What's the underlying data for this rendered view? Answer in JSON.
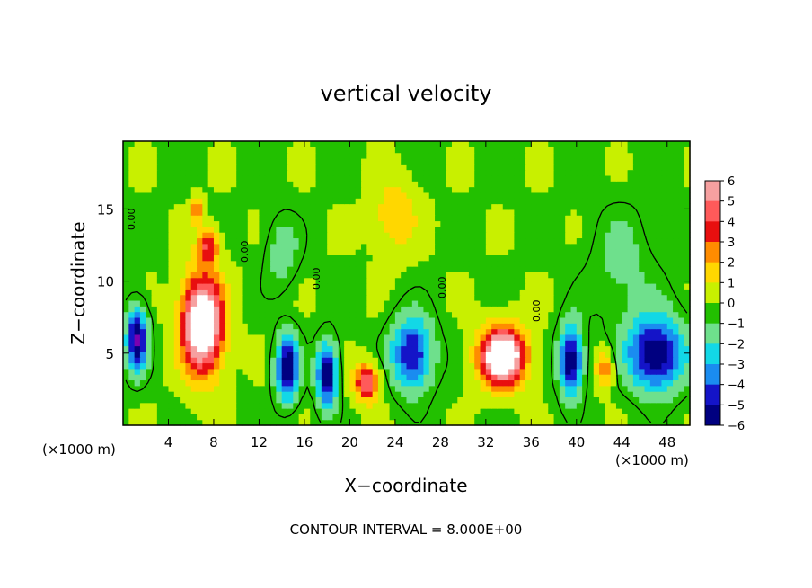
{
  "chart_data": {
    "type": "heatmap",
    "title": "vertical velocity",
    "xlabel": "X−coordinate",
    "ylabel": "Z−coordinate",
    "x_unit_left": "(×1000 m)",
    "x_unit_right": "(×1000 m)",
    "footer": "CONTOUR INTERVAL = 8.000E+00",
    "contour_label": "0.00",
    "xlim": [
      0,
      50
    ],
    "ylim": [
      0,
      19.7
    ],
    "x_ticks": [
      4,
      8,
      12,
      16,
      20,
      24,
      28,
      32,
      36,
      40,
      44,
      48
    ],
    "y_ticks": [
      5,
      10,
      15
    ],
    "colorbar": {
      "range": [
        -6,
        6
      ],
      "levels": [
        6,
        5,
        4,
        3,
        2,
        1,
        0,
        -1,
        -2,
        -3,
        -4,
        -5,
        -6
      ],
      "colors": [
        "#f6a0a0",
        "#ff5a5a",
        "#e80f0f",
        "#ff8c00",
        "#ffd700",
        "#c8f000",
        "#22c000",
        "#6ee08c",
        "#12d8e6",
        "#1a8cf0",
        "#1414c8",
        "#000080",
        "#7a00b0"
      ]
    },
    "features": [
      {
        "x": 7.0,
        "z": 7.0,
        "sx": 1.8,
        "sz": 3.3,
        "w": 9
      },
      {
        "x": 7.5,
        "z": 12.5,
        "sx": 0.9,
        "sz": 1.2,
        "w": 4
      },
      {
        "x": 6.5,
        "z": 15.0,
        "sx": 0.5,
        "sz": 1.0,
        "w": 3
      },
      {
        "x": 33.5,
        "z": 4.8,
        "sx": 2.0,
        "sz": 2.0,
        "w": 9
      },
      {
        "x": 21.5,
        "z": 3.0,
        "sx": 1.1,
        "sz": 1.3,
        "w": 5
      },
      {
        "x": 42.5,
        "z": 4.0,
        "sx": 0.8,
        "sz": 1.3,
        "w": 3
      },
      {
        "x": 24.0,
        "z": 14.5,
        "sx": 2.0,
        "sz": 2.5,
        "w": 2
      },
      {
        "x": 1.2,
        "z": 6.0,
        "sx": 0.9,
        "sz": 2.2,
        "w": -6
      },
      {
        "x": 14.5,
        "z": 4.0,
        "sx": 1.0,
        "sz": 2.2,
        "w": -6
      },
      {
        "x": 18.0,
        "z": 3.5,
        "sx": 0.9,
        "sz": 2.2,
        "w": -6
      },
      {
        "x": 25.5,
        "z": 5.0,
        "sx": 1.8,
        "sz": 2.5,
        "w": -5
      },
      {
        "x": 39.5,
        "z": 4.5,
        "sx": 1.0,
        "sz": 2.4,
        "w": -6
      },
      {
        "x": 47.0,
        "z": 5.0,
        "sx": 2.5,
        "sz": 2.5,
        "w": -6
      },
      {
        "x": 14.0,
        "z": 12.0,
        "sx": 1.5,
        "sz": 2.5,
        "w": -1.5
      },
      {
        "x": 44.0,
        "z": 11.0,
        "sx": 3.0,
        "sz": 4.0,
        "w": -1.2
      }
    ]
  }
}
